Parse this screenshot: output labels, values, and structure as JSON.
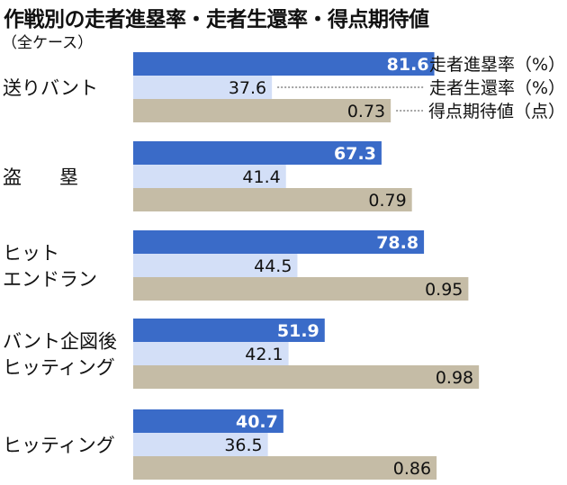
{
  "title": "作戦別の走者進塁率・走者生還率・得点期待値",
  "subtitle": "（全ケース）",
  "colors": {
    "advance": "#3a6bc8",
    "scored": "#d3dff7",
    "expected": "#c5bca6"
  },
  "chart_data": {
    "type": "bar",
    "orientation": "horizontal",
    "categories": [
      {
        "lines": [
          "送りバント"
        ]
      },
      {
        "lines": [
          "盗　　塁"
        ]
      },
      {
        "lines": [
          "ヒット",
          "エンドラン"
        ]
      },
      {
        "lines": [
          "バント企図後",
          "ヒッティング"
        ]
      },
      {
        "lines": [
          "ヒッティング"
        ]
      }
    ],
    "series": [
      {
        "name": "走者進塁率（%）",
        "values": [
          81.6,
          67.3,
          78.8,
          51.9,
          40.7
        ],
        "labels": [
          "81.6",
          "67.3",
          "78.8",
          "51.9",
          "40.7"
        ]
      },
      {
        "name": "走者生還率（%）",
        "values": [
          37.6,
          41.4,
          44.5,
          42.1,
          36.5
        ],
        "labels": [
          "37.6",
          "41.4",
          "44.5",
          "42.1",
          "36.5"
        ]
      },
      {
        "name": "得点期待値（点）",
        "values": [
          0.73,
          0.79,
          0.95,
          0.98,
          0.86
        ],
        "labels": [
          "0.73",
          "0.79",
          "0.95",
          "0.98",
          "0.86"
        ]
      }
    ],
    "legend": "top-right, attached to first group"
  }
}
